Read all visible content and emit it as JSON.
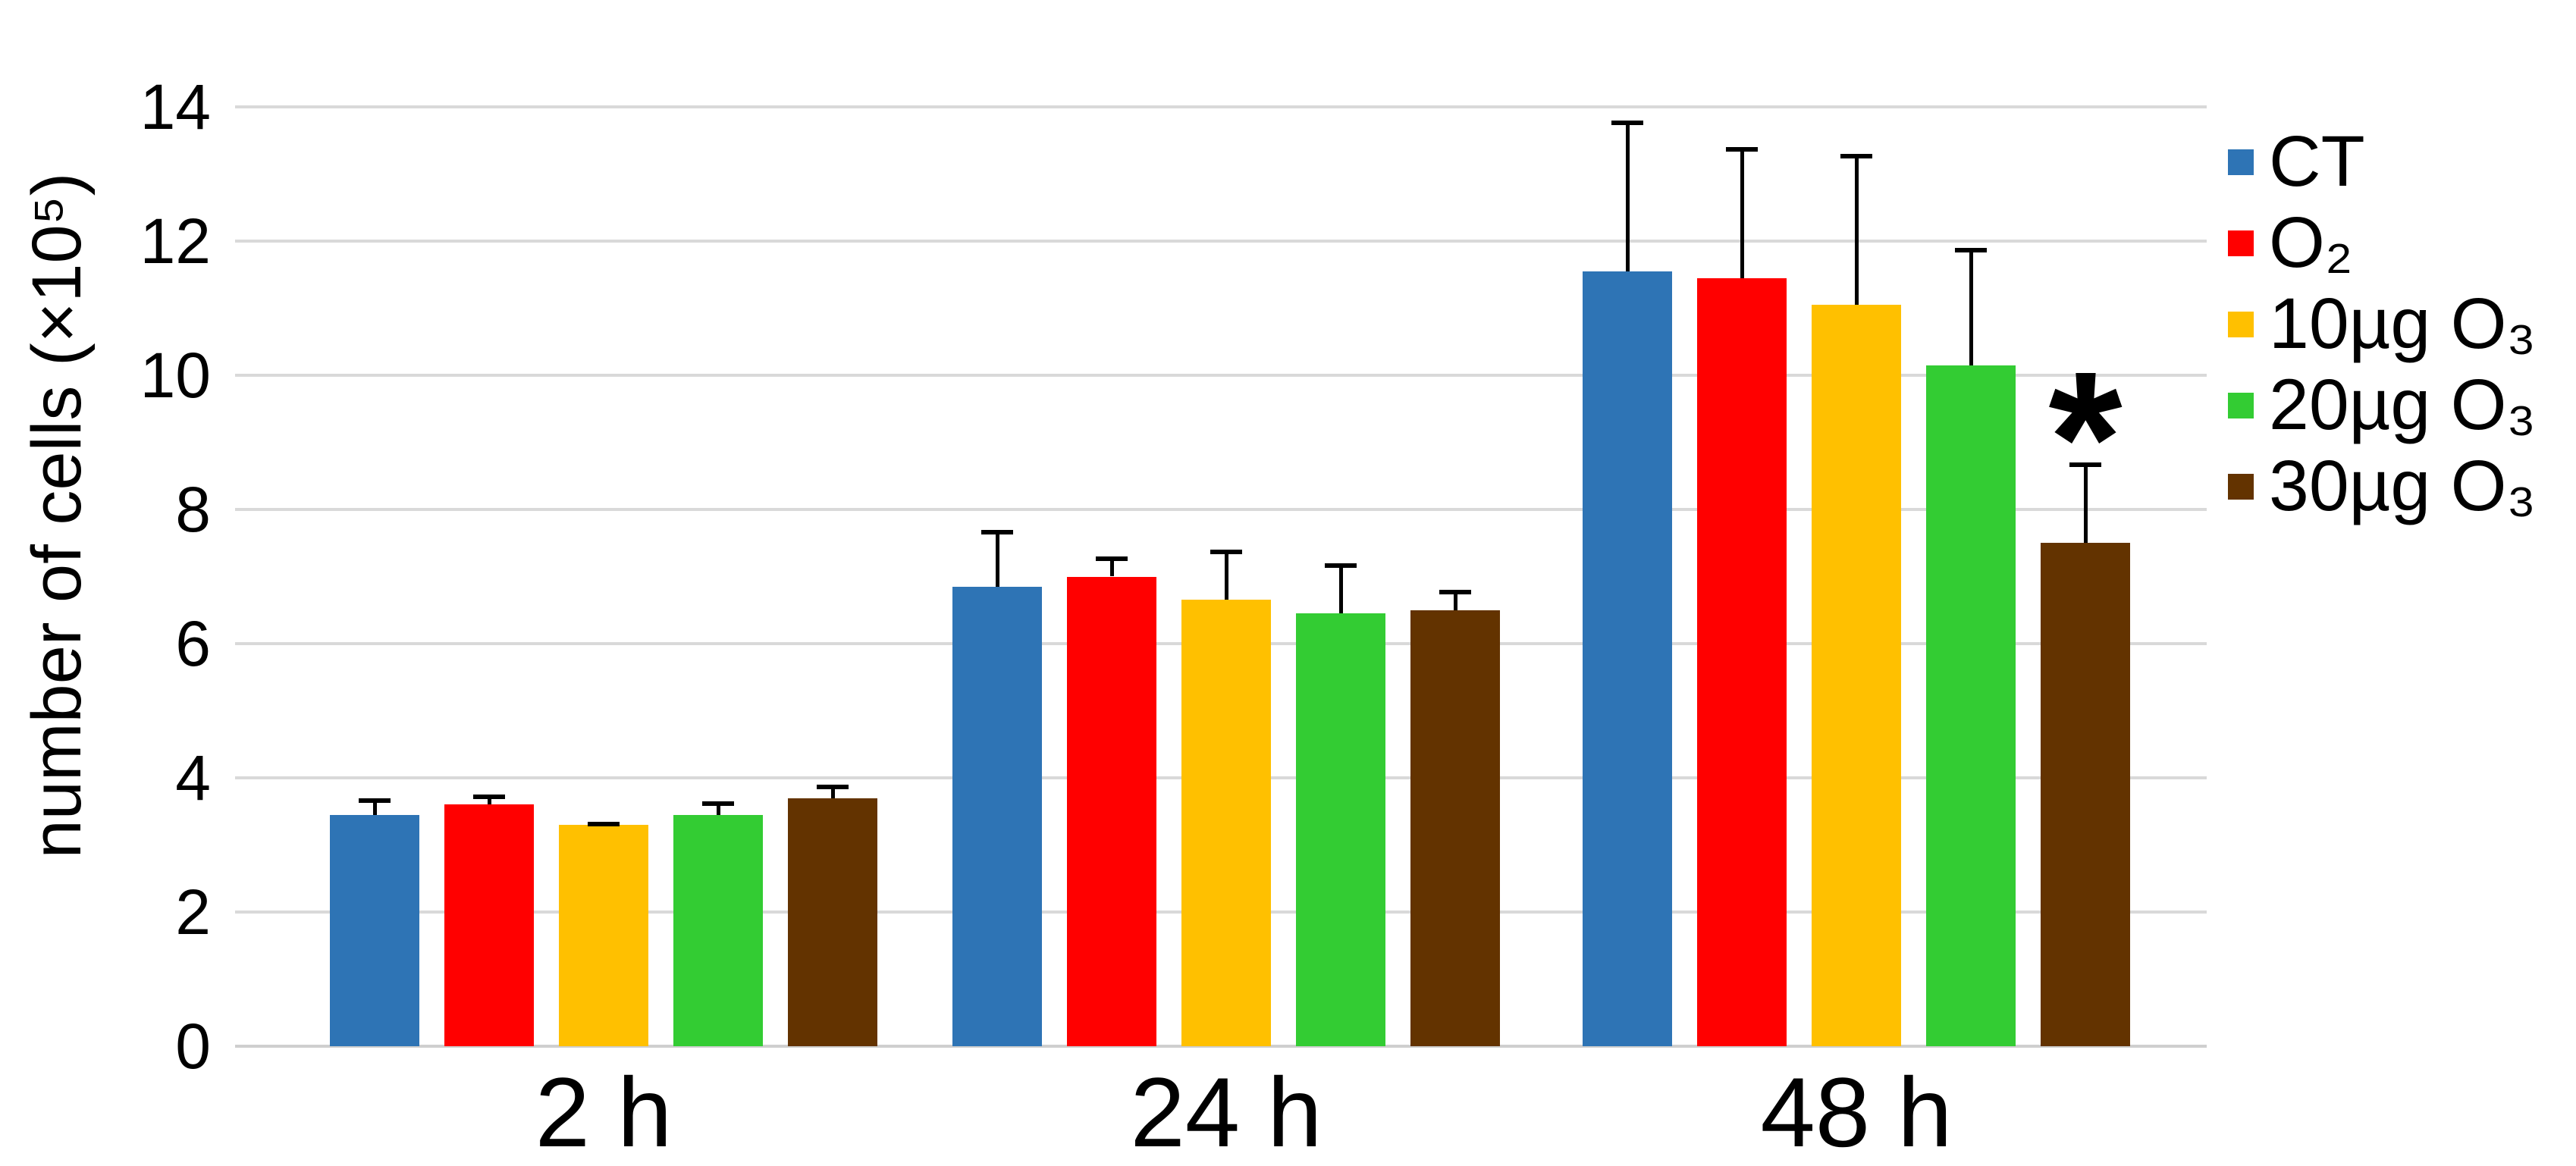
{
  "chart_data": {
    "type": "bar",
    "title": "",
    "xlabel": "",
    "ylabel": "number of cells (×10⁵)",
    "ylim": [
      0,
      14
    ],
    "ytick_step": 2,
    "grid": true,
    "legend_position": "right",
    "categories": [
      "2 h",
      "24 h",
      "48 h"
    ],
    "series": [
      {
        "name": "CT",
        "color": "#2E74B5",
        "values": [
          3.45,
          6.85,
          11.55
        ],
        "errors_plus": [
          0.25,
          0.85,
          2.25
        ]
      },
      {
        "name": "O₂",
        "color": "#FF0000",
        "values": [
          3.6,
          7.0,
          11.45
        ],
        "errors_plus": [
          0.15,
          0.3,
          1.95
        ]
      },
      {
        "name": "10µg O₃",
        "color": "#FFC000",
        "values": [
          3.3,
          6.65,
          11.05
        ],
        "errors_plus": [
          0.05,
          0.75,
          2.25
        ]
      },
      {
        "name": "20µg O₃",
        "color": "#33CC33",
        "values": [
          3.45,
          6.45,
          10.15
        ],
        "errors_plus": [
          0.2,
          0.75,
          1.75
        ]
      },
      {
        "name": "30µg O₃",
        "color": "#633300",
        "values": [
          3.7,
          6.5,
          7.5
        ],
        "errors_plus": [
          0.2,
          0.3,
          1.2
        ]
      }
    ],
    "annotations": [
      {
        "text": "*",
        "category": "48 h",
        "series": "30µg O₃",
        "value": 9.4
      }
    ]
  }
}
